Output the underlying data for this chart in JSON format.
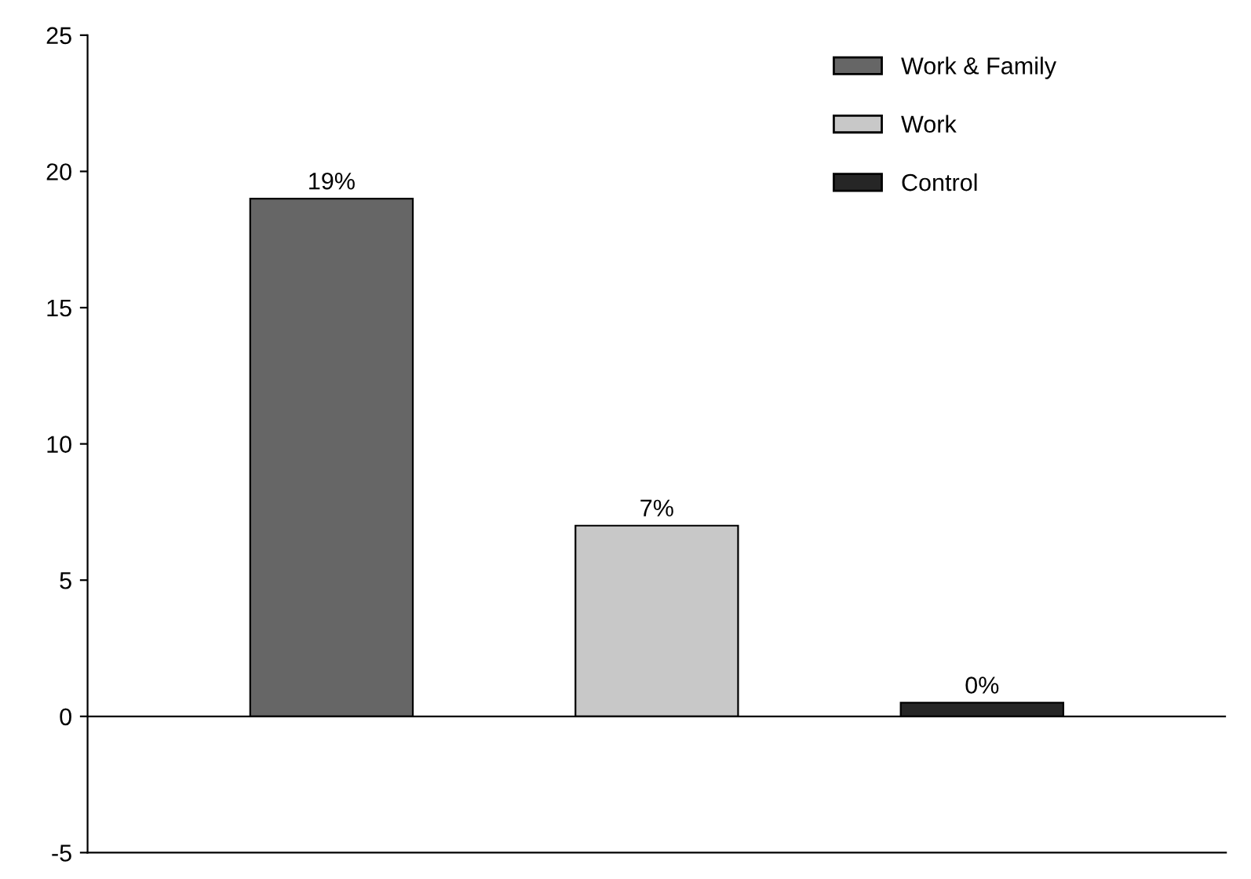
{
  "chart_data": {
    "type": "bar",
    "categories": [
      null,
      null,
      null
    ],
    "series": [
      {
        "name": "Work & Family",
        "color": "#666666",
        "values": [
          19,
          null,
          null
        ],
        "value_labels": [
          "19%",
          null,
          null
        ]
      },
      {
        "name": "Work",
        "color": "#c8c8c8",
        "values": [
          null,
          7,
          null
        ],
        "value_labels": [
          null,
          "7%",
          null
        ]
      },
      {
        "name": "Control",
        "color": "#262626",
        "values": [
          null,
          null,
          0.5
        ],
        "value_labels": [
          null,
          null,
          "0%"
        ]
      }
    ],
    "ylim": [
      -5,
      25
    ],
    "yticks": [
      -5,
      0,
      5,
      10,
      15,
      20,
      25
    ],
    "ref_lines": [
      {
        "axis": "y",
        "value": 0,
        "color": "#000000"
      }
    ],
    "grid": false,
    "legend": "top right",
    "tick_labels": "y"
  }
}
